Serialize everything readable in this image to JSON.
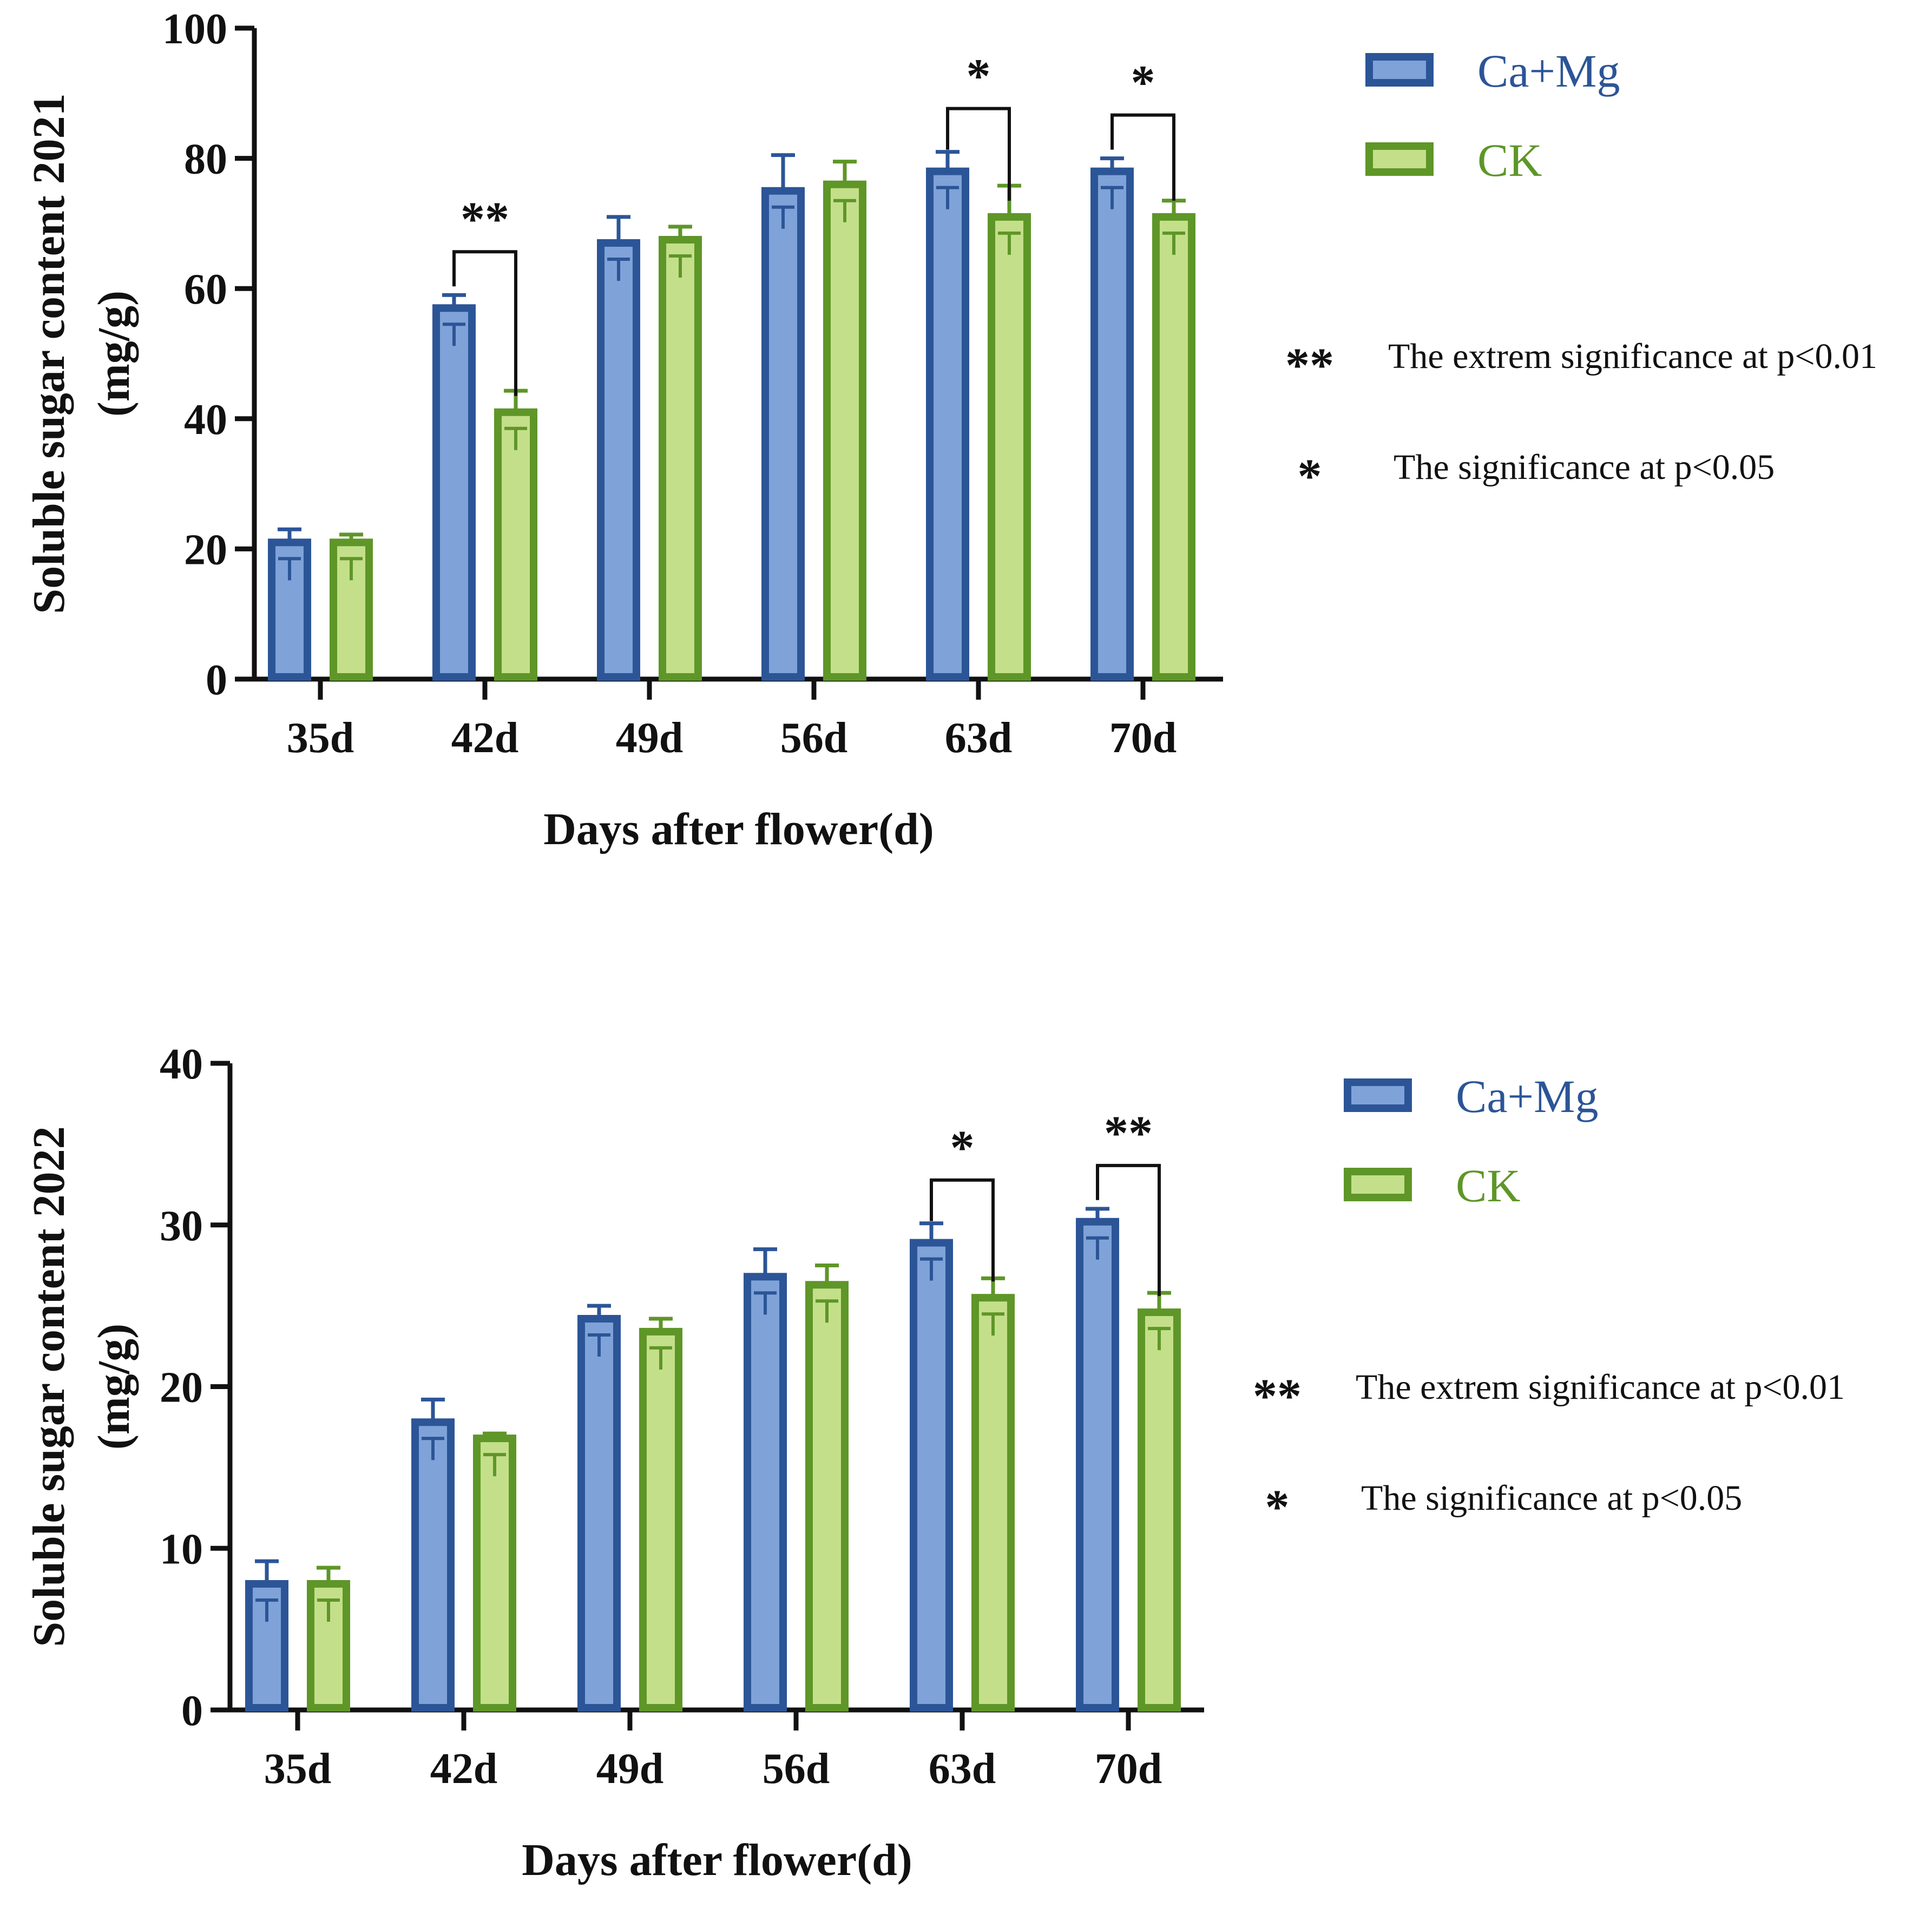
{
  "colors": {
    "ca_mg_fill": "#7fa3d8",
    "ca_mg_stroke": "#2c5597",
    "ck_fill": "#c4df8a",
    "ck_stroke": "#5e9628",
    "axis": "#111111"
  },
  "chart_data": [
    {
      "type": "bar",
      "title": "",
      "ylabel_line1": "Soluble sugar content 2021",
      "ylabel_line2": "(mg/g)",
      "xlabel": "Days after flower(d)",
      "categories": [
        "35d",
        "42d",
        "49d",
        "56d",
        "63d",
        "70d"
      ],
      "ylim": [
        0,
        100
      ],
      "yticks": [
        0,
        20,
        40,
        60,
        80,
        100
      ],
      "series": [
        {
          "name": "Ca+Mg",
          "values": [
            21,
            57,
            67,
            75,
            78,
            78
          ],
          "errors": [
            2,
            2,
            4,
            5.5,
            3,
            2
          ]
        },
        {
          "name": "CK",
          "values": [
            21,
            41,
            67.5,
            76,
            71,
            71
          ],
          "errors": [
            1.2,
            3.3,
            2,
            3.5,
            4.8,
            2.5
          ]
        }
      ],
      "significance": [
        {
          "category": "42d",
          "mark": "**"
        },
        {
          "category": "63d",
          "mark": "*"
        },
        {
          "category": "70d",
          "mark": "*"
        }
      ],
      "legend": {
        "placement": "top-right",
        "entries": [
          "Ca+Mg",
          "CK"
        ]
      },
      "notes": [
        {
          "mark": "**",
          "text": "The extrem significance at p<0.01"
        },
        {
          "mark": "*",
          "text": "The significance at p<0.05"
        }
      ]
    },
    {
      "type": "bar",
      "title": "",
      "ylabel_line1": "Soluble sugar content 2022",
      "ylabel_line2": "(mg/g)",
      "xlabel": "Days after flower(d)",
      "categories": [
        "35d",
        "42d",
        "49d",
        "56d",
        "63d",
        "70d"
      ],
      "ylim": [
        0,
        40
      ],
      "yticks": [
        0,
        10,
        20,
        30,
        40
      ],
      "series": [
        {
          "name": "Ca+Mg",
          "values": [
            7.8,
            17.8,
            24.2,
            26.8,
            28.9,
            30.2
          ],
          "errors": [
            1.4,
            1.4,
            0.8,
            1.7,
            1.2,
            0.8
          ]
        },
        {
          "name": "CK",
          "values": [
            7.8,
            16.8,
            23.4,
            26.3,
            25.5,
            24.6
          ],
          "errors": [
            1.0,
            0.3,
            0.8,
            1.2,
            1.2,
            1.2
          ]
        }
      ],
      "significance": [
        {
          "category": "63d",
          "mark": "*"
        },
        {
          "category": "70d",
          "mark": "**"
        }
      ],
      "legend": {
        "placement": "top-right",
        "entries": [
          "Ca+Mg",
          "CK"
        ]
      },
      "notes": [
        {
          "mark": "**",
          "text": "The extrem significance at p<0.01"
        },
        {
          "mark": "*",
          "text": "The significance at p<0.05"
        }
      ]
    }
  ]
}
